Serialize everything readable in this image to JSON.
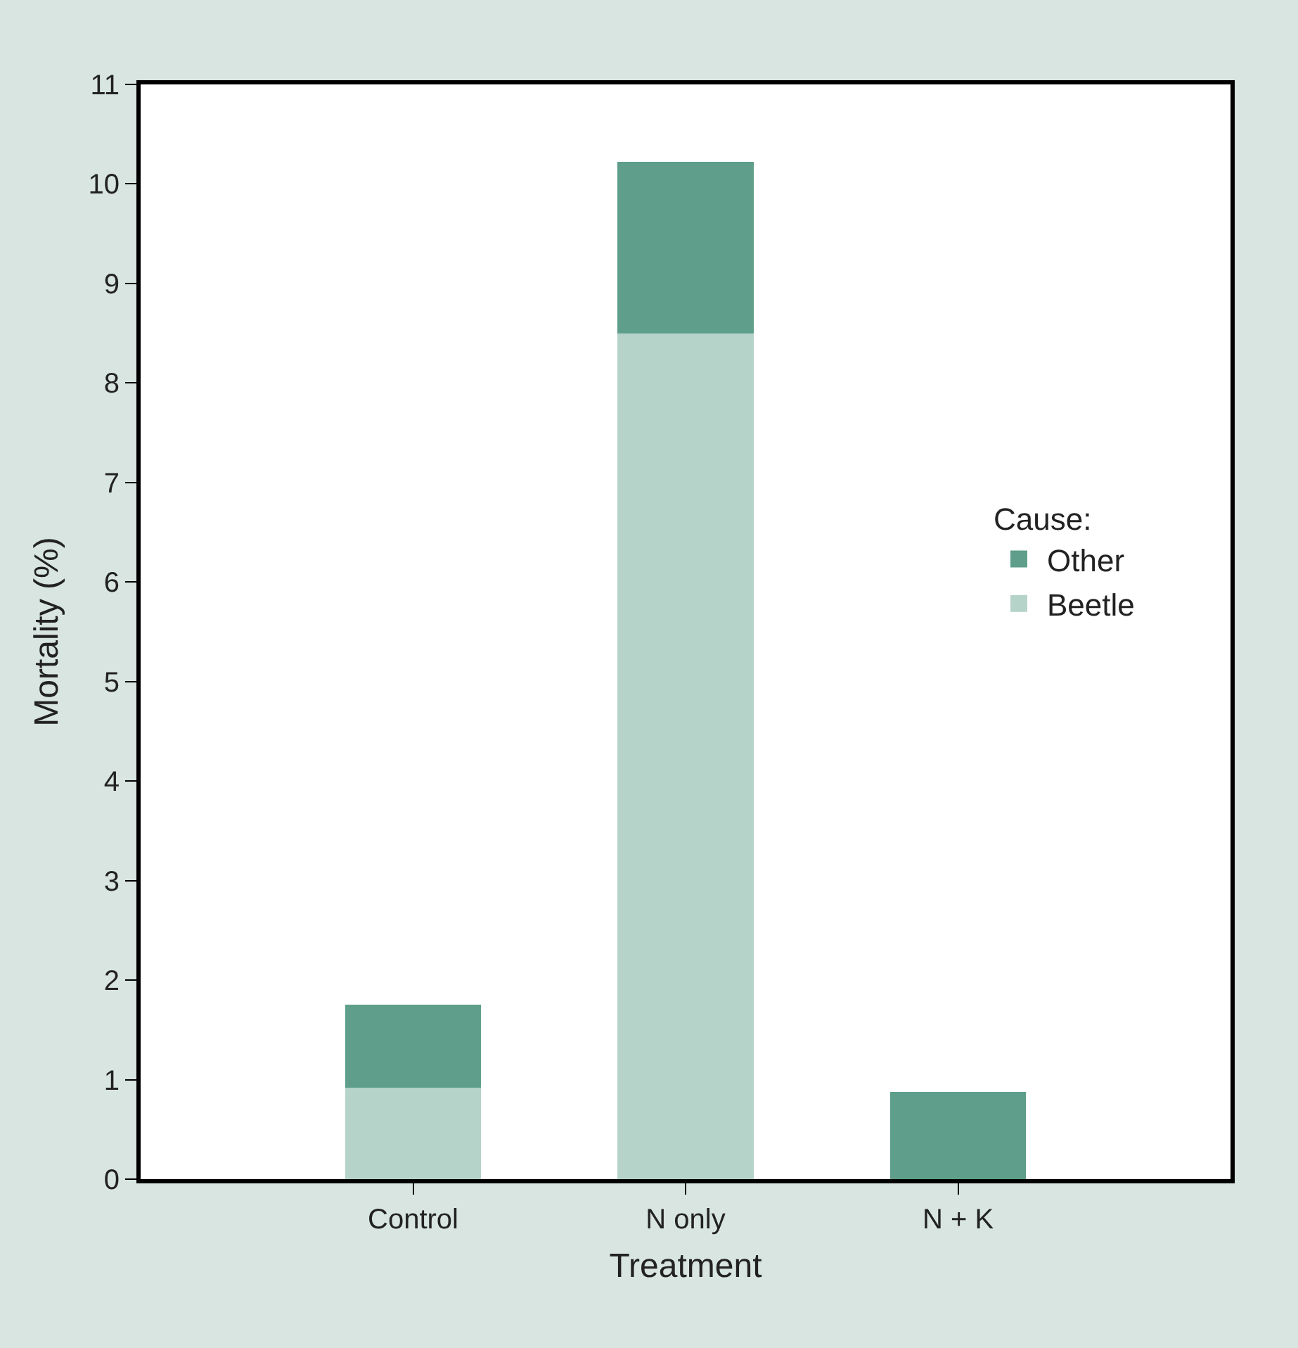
{
  "chart_data": {
    "type": "bar",
    "stacked": true,
    "xlabel": "Treatment",
    "ylabel": "Mortality (%)",
    "legend_title": "Cause:",
    "categories": [
      "Control",
      "N only",
      "N + K"
    ],
    "series": [
      {
        "name": "Beetle",
        "color": "#b5d3c9",
        "values": [
          0.92,
          8.5,
          0
        ]
      },
      {
        "name": "Other",
        "color": "#5e9e8a",
        "values": [
          0.83,
          1.72,
          0.88
        ]
      }
    ],
    "ylim": [
      0,
      11
    ],
    "yticks": [
      0,
      1,
      2,
      3,
      4,
      5,
      6,
      7,
      8,
      9,
      10,
      11
    ],
    "legend": "right"
  }
}
